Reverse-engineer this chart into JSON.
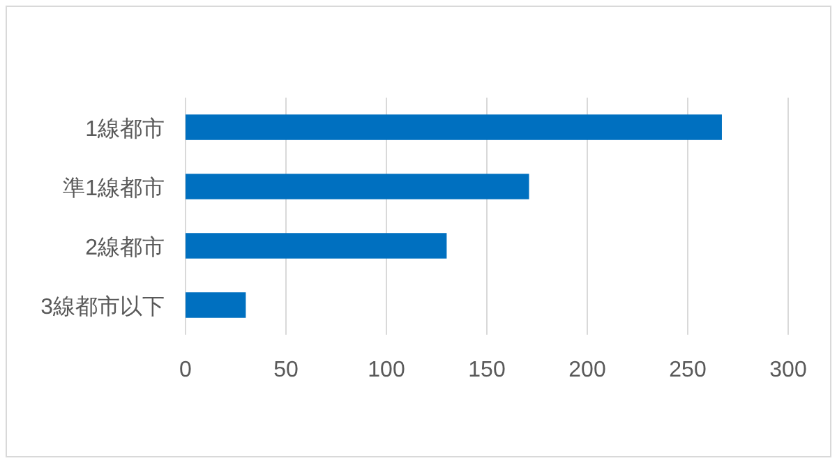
{
  "chart_data": {
    "type": "bar",
    "orientation": "horizontal",
    "categories": [
      "1線都市",
      "準1線都市",
      "2線都市",
      "3線都市以下"
    ],
    "values": [
      267,
      171,
      130,
      30
    ],
    "color": "#0070c0",
    "xlim": [
      0,
      300
    ],
    "xticks": [
      0,
      50,
      100,
      150,
      200,
      250,
      300
    ],
    "grid": "x"
  }
}
